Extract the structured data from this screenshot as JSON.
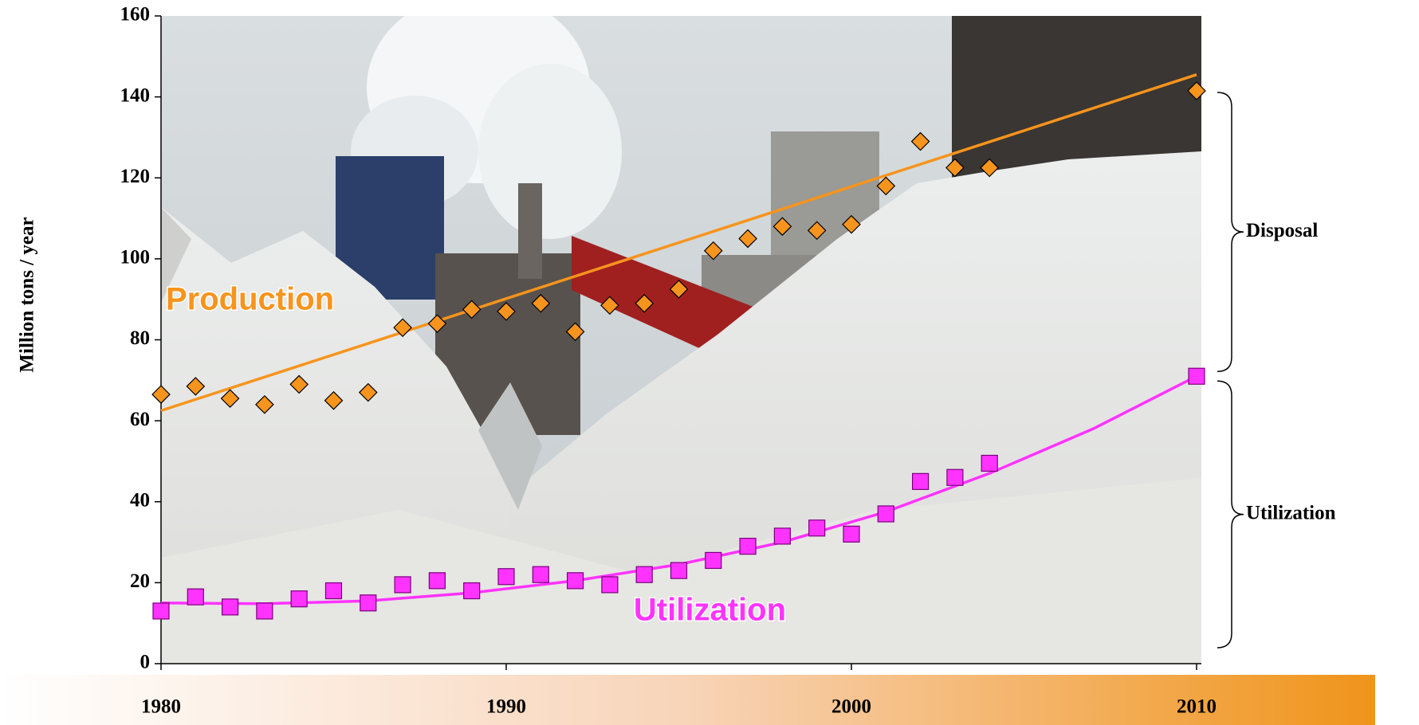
{
  "chart_data": {
    "type": "scatter",
    "y_label": "Million tons / year",
    "x": [
      1980,
      1981,
      1982,
      1983,
      1984,
      1985,
      1986,
      1987,
      1988,
      1989,
      1990,
      1991,
      1992,
      1993,
      1994,
      1995,
      1996,
      1997,
      1998,
      1999,
      2000,
      2001,
      2002,
      2003,
      2004,
      2010
    ],
    "series": [
      {
        "name": "Production",
        "color": "#f7941d",
        "marker": "diamond",
        "values": [
          66.5,
          68.5,
          65.5,
          64,
          69,
          65,
          67,
          83,
          84,
          87.5,
          87,
          89,
          82,
          88.5,
          89,
          92.5,
          102,
          105,
          108,
          107,
          108.5,
          118,
          129,
          122.5,
          122.5,
          141.5
        ],
        "trend": {
          "x": [
            1980,
            2010
          ],
          "values": [
            62.5,
            145.5
          ]
        }
      },
      {
        "name": "Utilization",
        "color": "#ff33ff",
        "marker": "square",
        "values": [
          13,
          16.5,
          14,
          13,
          16,
          18,
          15,
          19.5,
          20.5,
          18,
          21.5,
          22,
          20.5,
          19.5,
          22,
          23,
          25.5,
          29,
          31.5,
          33.5,
          32,
          37,
          45,
          46,
          49.5,
          71
        ],
        "trend": {
          "x": [
            1980,
            1983,
            1986,
            1989,
            1992,
            1995,
            1998,
            2001,
            2004,
            2007,
            2010
          ],
          "values": [
            15,
            14.8,
            15.5,
            17.5,
            20.5,
            24.5,
            30,
            37.5,
            47,
            58,
            71
          ]
        }
      }
    ],
    "annotations": [
      "Disposal",
      "Utilization"
    ],
    "xlim": [
      1980,
      2010
    ],
    "xticks": [
      1980,
      1990,
      2000,
      2010
    ],
    "ylim": [
      0,
      160
    ],
    "yticks": [
      0,
      20,
      40,
      60,
      80,
      100,
      120,
      140,
      160
    ]
  }
}
